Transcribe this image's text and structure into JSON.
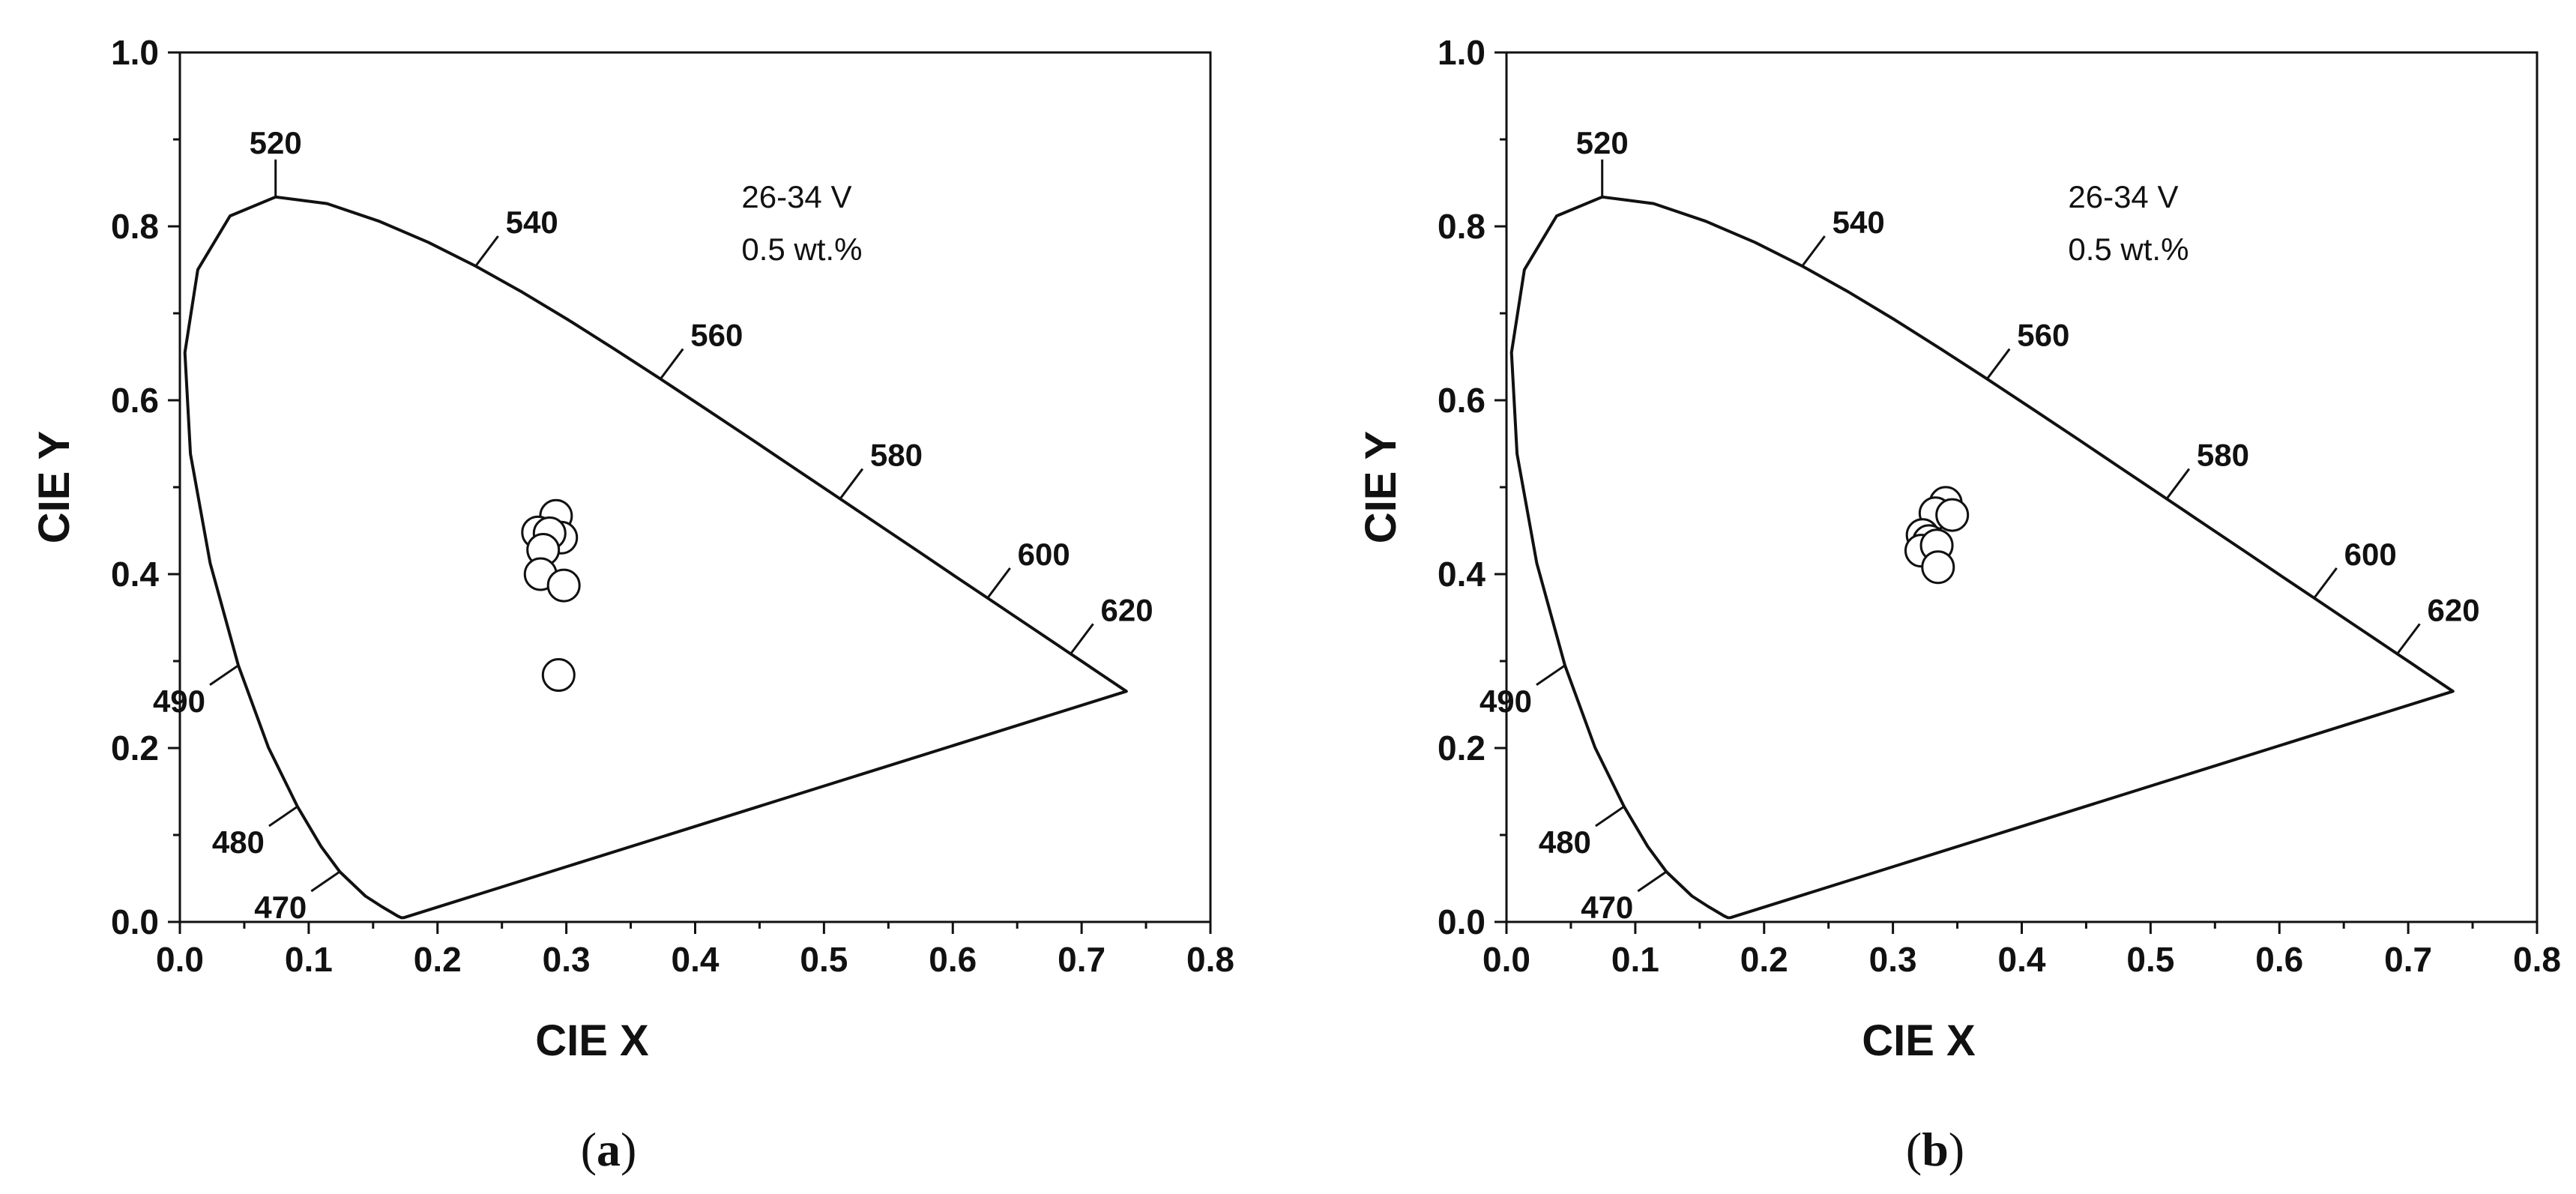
{
  "chart_data": [
    {
      "type": "scatter",
      "caption_letter": "a",
      "xlabel": "CIE X",
      "ylabel": "CIE Y",
      "xlim": [
        0.0,
        0.8
      ],
      "ylim": [
        0.0,
        1.0
      ],
      "x_ticks": [
        "0.0",
        "0.1",
        "0.2",
        "0.3",
        "0.4",
        "0.5",
        "0.6",
        "0.7",
        "0.8"
      ],
      "y_ticks": [
        "0.0",
        "0.2",
        "0.4",
        "0.6",
        "0.8",
        "1.0"
      ],
      "annotation_lines": [
        "26-34 V",
        "0.5 wt.%"
      ],
      "locus_labels": [
        "520",
        "540",
        "560",
        "580",
        "600",
        "620",
        "490",
        "480",
        "470"
      ],
      "points": [
        {
          "x": 0.292,
          "y": 0.467
        },
        {
          "x": 0.278,
          "y": 0.448
        },
        {
          "x": 0.296,
          "y": 0.442
        },
        {
          "x": 0.287,
          "y": 0.447
        },
        {
          "x": 0.282,
          "y": 0.428
        },
        {
          "x": 0.28,
          "y": 0.4
        },
        {
          "x": 0.298,
          "y": 0.387
        },
        {
          "x": 0.294,
          "y": 0.284
        }
      ]
    },
    {
      "type": "scatter",
      "caption_letter": "b",
      "xlabel": "CIE X",
      "ylabel": "CIE Y",
      "xlim": [
        0.0,
        0.8
      ],
      "ylim": [
        0.0,
        1.0
      ],
      "x_ticks": [
        "0.0",
        "0.1",
        "0.2",
        "0.3",
        "0.4",
        "0.5",
        "0.6",
        "0.7",
        "0.8"
      ],
      "y_ticks": [
        "0.0",
        "0.2",
        "0.4",
        "0.6",
        "0.8",
        "1.0"
      ],
      "annotation_lines": [
        "26-34 V",
        "0.5 wt.%"
      ],
      "locus_labels": [
        "520",
        "540",
        "560",
        "580",
        "600",
        "620",
        "490",
        "480",
        "470"
      ],
      "points": [
        {
          "x": 0.341,
          "y": 0.482
        },
        {
          "x": 0.333,
          "y": 0.47
        },
        {
          "x": 0.346,
          "y": 0.468
        },
        {
          "x": 0.323,
          "y": 0.445
        },
        {
          "x": 0.328,
          "y": 0.438
        },
        {
          "x": 0.322,
          "y": 0.427
        },
        {
          "x": 0.334,
          "y": 0.433
        },
        {
          "x": 0.335,
          "y": 0.408
        }
      ]
    }
  ]
}
